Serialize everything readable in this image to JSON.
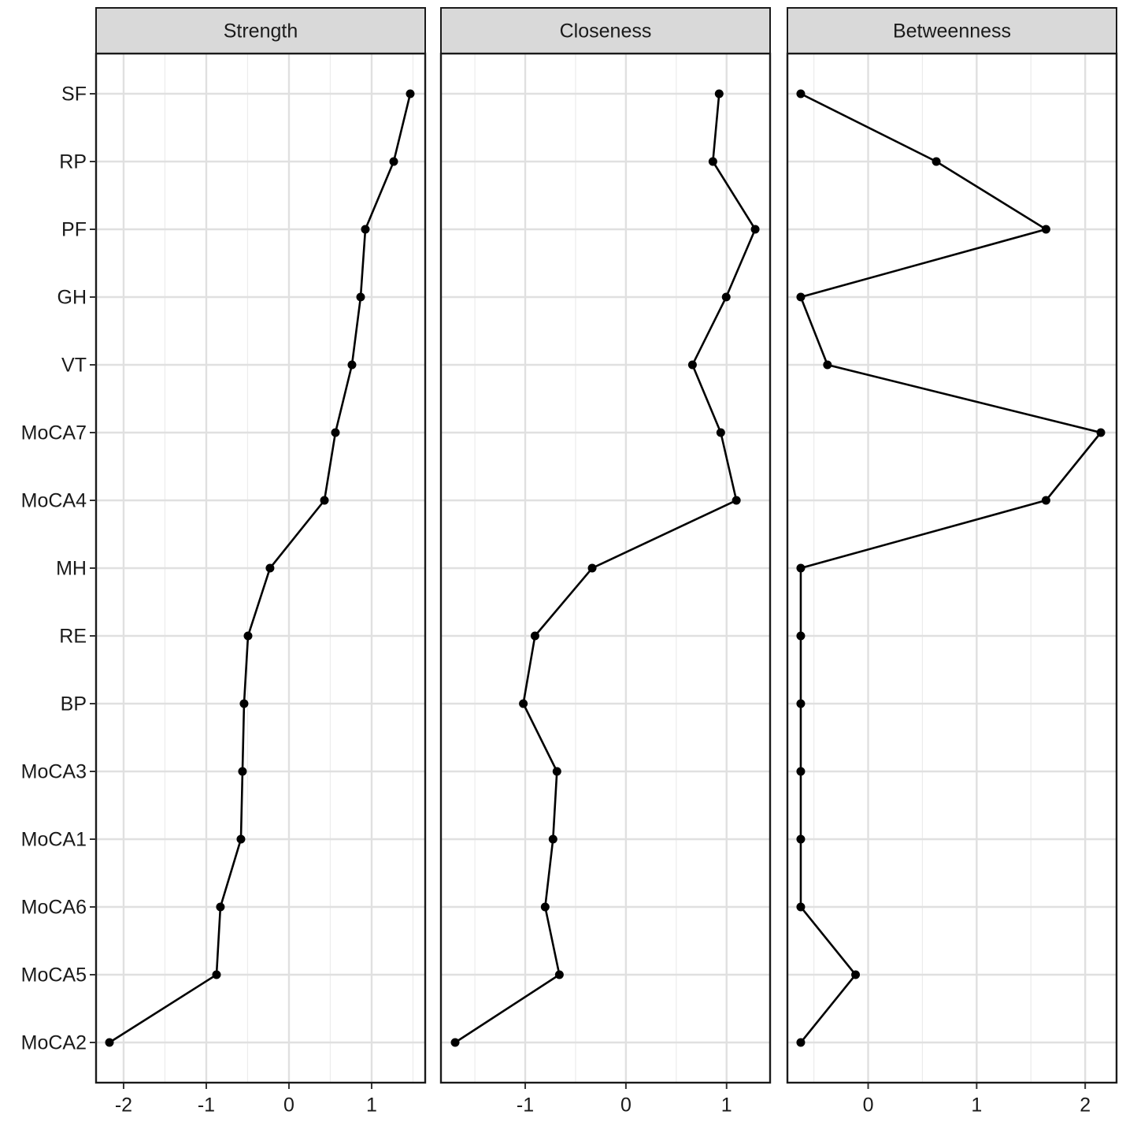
{
  "chart_data": {
    "type": "line",
    "categories": [
      "SF",
      "RP",
      "PF",
      "GH",
      "VT",
      "MoCA7",
      "MoCA4",
      "MH",
      "RE",
      "BP",
      "MoCA3",
      "MoCA1",
      "MoCA6",
      "MoCA5",
      "MoCA2"
    ],
    "color": "#000000",
    "grid": true,
    "panels": [
      {
        "title": "Strength",
        "values": [
          1.467,
          1.267,
          0.924,
          0.867,
          0.762,
          0.562,
          0.429,
          -0.229,
          -0.495,
          -0.543,
          -0.562,
          -0.581,
          -0.829,
          -0.876,
          -2.171
        ],
        "xlim": [
          -2.333,
          1.648
        ],
        "xticks": [
          -2,
          -1,
          0,
          1
        ],
        "minor_xticks": [
          -1.5,
          -0.5,
          0.5,
          1.5
        ]
      },
      {
        "title": "Closeness",
        "values": [
          0.926,
          0.864,
          1.284,
          0.996,
          0.661,
          0.942,
          1.097,
          -0.335,
          -0.903,
          -1.019,
          -0.685,
          -0.724,
          -0.802,
          -0.661,
          -1.696
        ],
        "xlim": [
          -1.837,
          1.432
        ],
        "xticks": [
          -1,
          0,
          1
        ],
        "minor_xticks": [
          -1.5,
          -0.5,
          0.5
        ]
      },
      {
        "title": "Betweenness",
        "values": [
          -0.621,
          0.628,
          1.639,
          -0.621,
          -0.375,
          2.144,
          1.639,
          -0.621,
          -0.621,
          -0.621,
          -0.621,
          -0.621,
          -0.621,
          -0.116,
          -0.621
        ],
        "xlim": [
          -0.744,
          2.289
        ],
        "xticks": [
          0,
          1,
          2
        ],
        "minor_xticks": [
          -0.5,
          0.5,
          1.5
        ]
      }
    ]
  }
}
